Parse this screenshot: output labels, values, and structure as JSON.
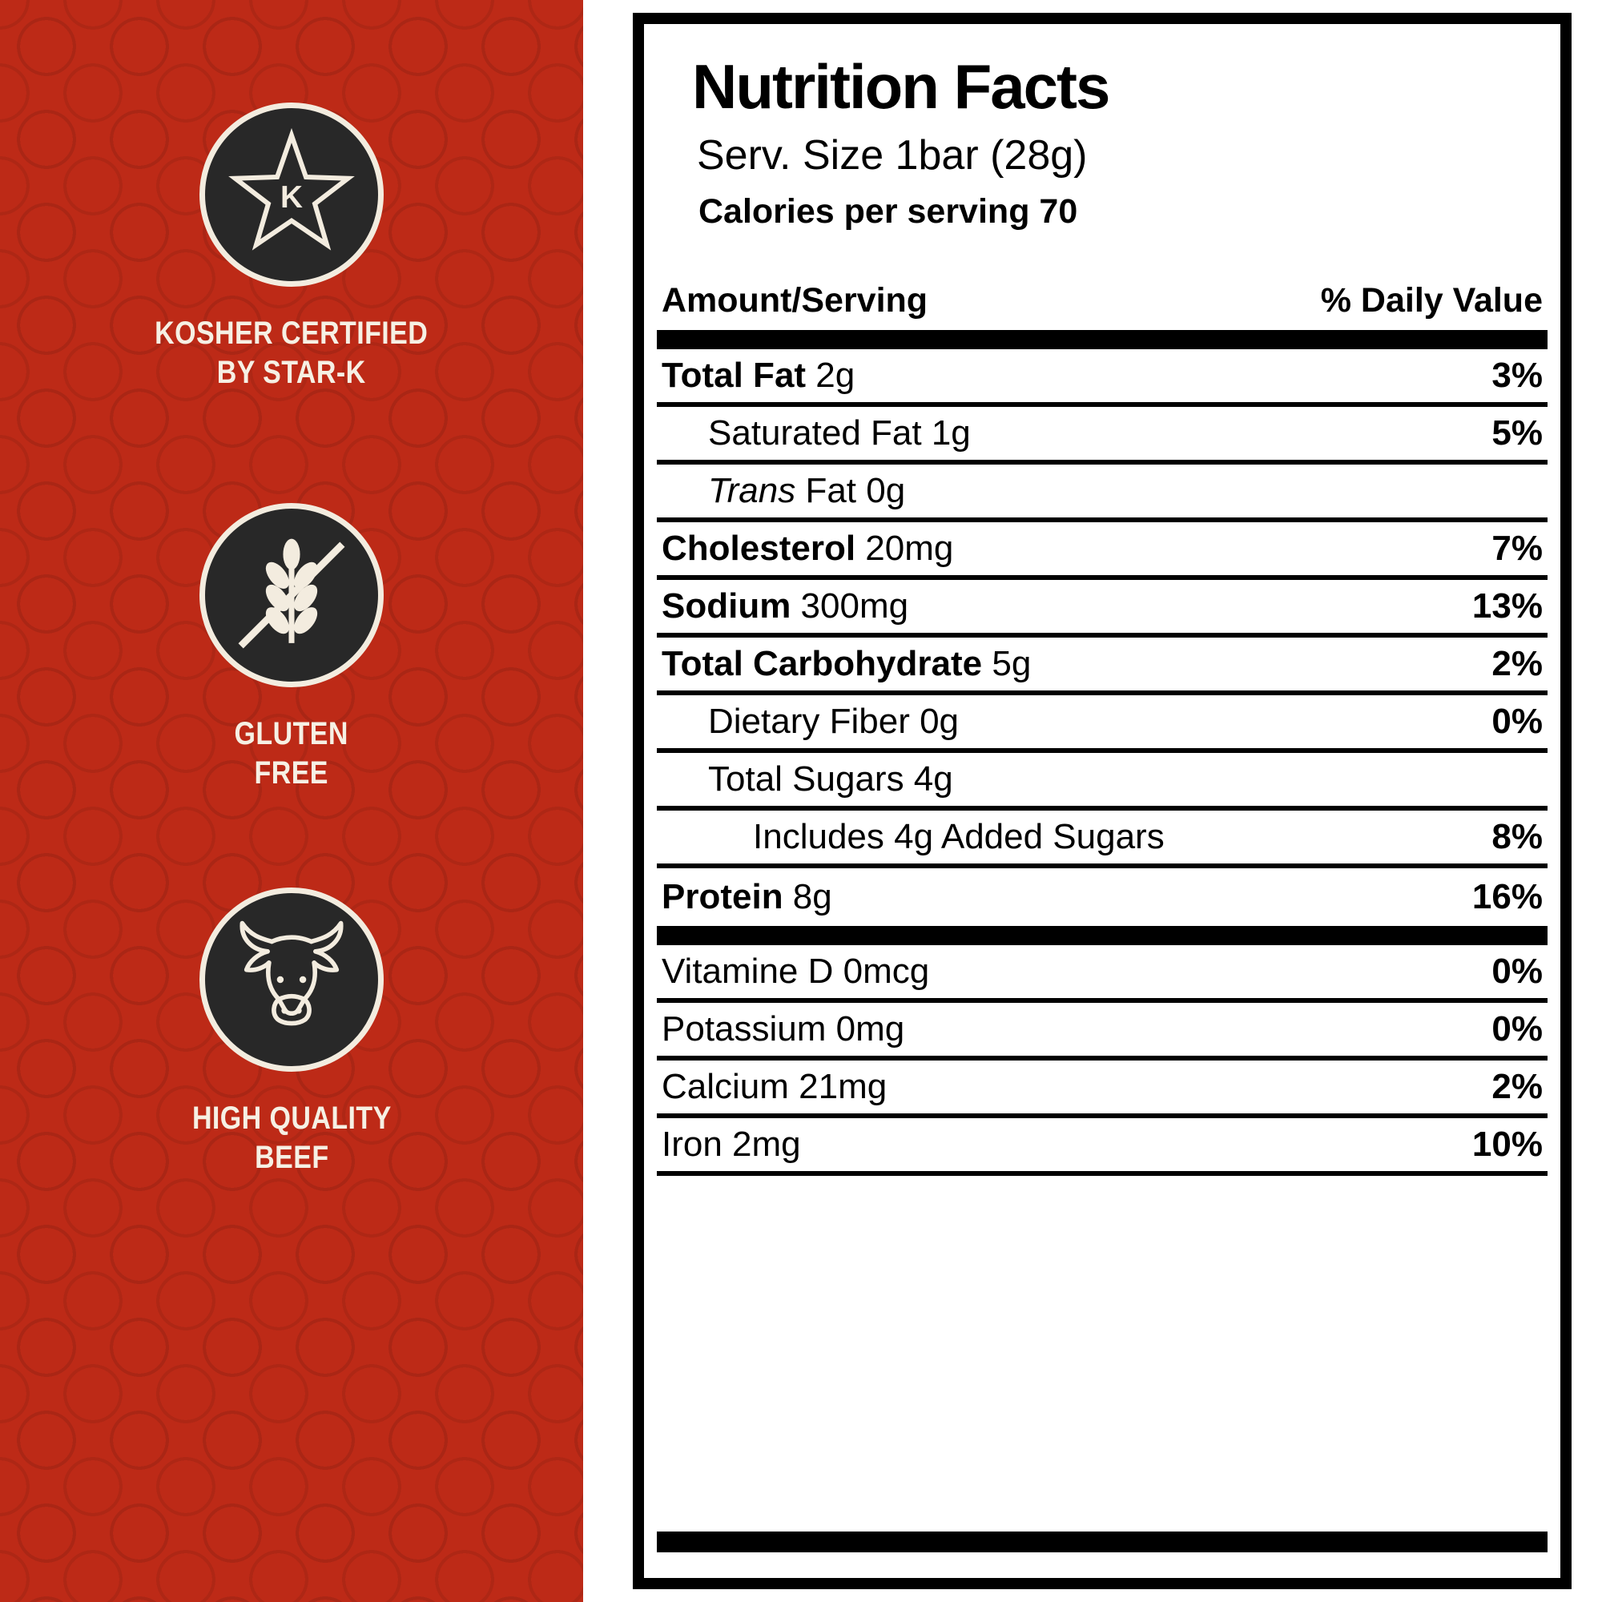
{
  "colors": {
    "red_background": "#bd2a17",
    "badge_circle": "#282828",
    "cream": "#f3ecdf",
    "label_text": "#000000",
    "label_background": "#ffffff"
  },
  "left_panel": {
    "badges": [
      {
        "icon": "star-k-icon",
        "line1": "KOSHER CERTIFIED",
        "line2": "BY STAR-K"
      },
      {
        "icon": "wheat-crossed-icon",
        "line1": "GLUTEN",
        "line2": "FREE"
      },
      {
        "icon": "cow-icon",
        "line1": "HIGH QUALITY",
        "line2": "BEEF"
      }
    ]
  },
  "nutrition": {
    "title": "Nutrition Facts",
    "serving_size": "Serv. Size 1bar (28g)",
    "calories": "Calories per serving 70",
    "col_amount": "Amount/Serving",
    "col_dv": "% Daily Value",
    "rows": [
      {
        "name": "Total Fat",
        "amount": "2g",
        "dv": "3%",
        "style": "bold",
        "indent": 0
      },
      {
        "name": "Saturated Fat",
        "amount": "1g",
        "dv": "5%",
        "style": "normal",
        "indent": 1
      },
      {
        "name": "Trans",
        "amount": "Fat 0g",
        "dv": "",
        "style": "italic",
        "indent": 1
      },
      {
        "name": "Cholesterol",
        "amount": "20mg",
        "dv": "7%",
        "style": "bold",
        "indent": 0
      },
      {
        "name": "Sodium",
        "amount": "300mg",
        "dv": "13%",
        "style": "bold",
        "indent": 0
      },
      {
        "name": "Total Carbohydrate",
        "amount": "5g",
        "dv": "2%",
        "style": "bold",
        "indent": 0
      },
      {
        "name": "Dietary Fiber",
        "amount": "0g",
        "dv": "0%",
        "style": "normal",
        "indent": 1
      },
      {
        "name": "Total Sugars",
        "amount": "4g",
        "dv": "",
        "style": "normal",
        "indent": 1
      },
      {
        "name": "Includes 4g Added Sugars",
        "amount": "",
        "dv": "8%",
        "style": "normal",
        "indent": 2
      },
      {
        "name": "Protein",
        "amount": "8g",
        "dv": "16%",
        "style": "bold",
        "indent": 0,
        "thick_after": true
      },
      {
        "name": "Vitamine D",
        "amount": "0mcg",
        "dv": "0%",
        "style": "normal",
        "indent": 0
      },
      {
        "name": "Potassium",
        "amount": "0mg",
        "dv": "0%",
        "style": "normal",
        "indent": 0
      },
      {
        "name": "Calcium",
        "amount": "21mg",
        "dv": "2%",
        "style": "normal",
        "indent": 0
      },
      {
        "name": "Iron",
        "amount": "2mg",
        "dv": "10%",
        "style": "normal",
        "indent": 0
      }
    ]
  }
}
